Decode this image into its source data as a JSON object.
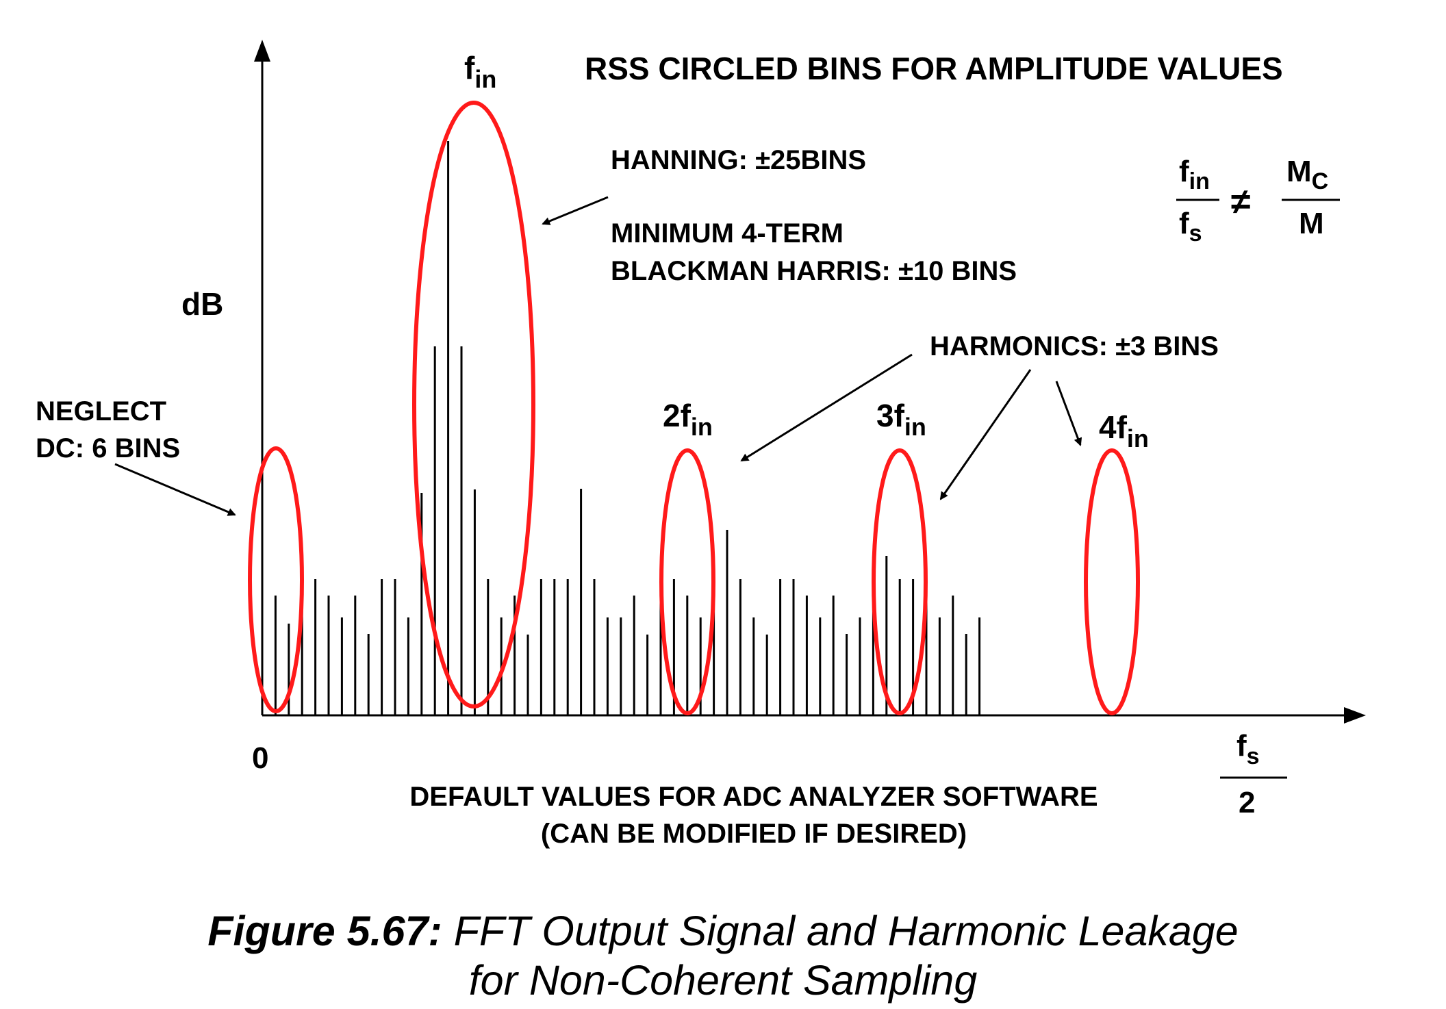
{
  "diagram": {
    "title": "RSS CIRCLED BINS FOR AMPLITUDE VALUES",
    "y_axis_label": "dB",
    "x_axis_zero": "0",
    "x_axis_end": {
      "numerator": "f",
      "numerator_sub": "s",
      "denominator": "2"
    },
    "peak_labels": {
      "fundamental": {
        "text": "f",
        "sub": "in"
      },
      "second": {
        "text": "2f",
        "sub": "in"
      },
      "third": {
        "text": "3f",
        "sub": "in"
      },
      "fourth": {
        "text": "4f",
        "sub": "in"
      }
    },
    "annotations": {
      "neglect_line1": "NEGLECT",
      "neglect_line2": "DC: 6 BINS",
      "hanning": "HANNING: ±25BINS",
      "bh_line1": "MINIMUM 4-TERM",
      "bh_line2": "BLACKMAN HARRIS: ±10 BINS",
      "harmonics": "HARMONICS: ±3 BINS",
      "default_line1": "DEFAULT VALUES FOR ADC ANALYZER SOFTWARE",
      "default_line2": "(CAN BE MODIFIED IF DESIRED)"
    },
    "equation": {
      "left_num": "f",
      "left_num_sub": "in",
      "left_den": "f",
      "left_den_sub": "s",
      "operator": "≠",
      "right_num": "M",
      "right_num_sub": "C",
      "right_den": "M"
    },
    "colors": {
      "ellipse": "#ff1a1a",
      "line": "#000000"
    }
  },
  "caption": {
    "label": "Figure 5.67:",
    "line1": "FFT Output Signal and Harmonic Leakage",
    "line2": "for Non-Coherent Sampling"
  }
}
